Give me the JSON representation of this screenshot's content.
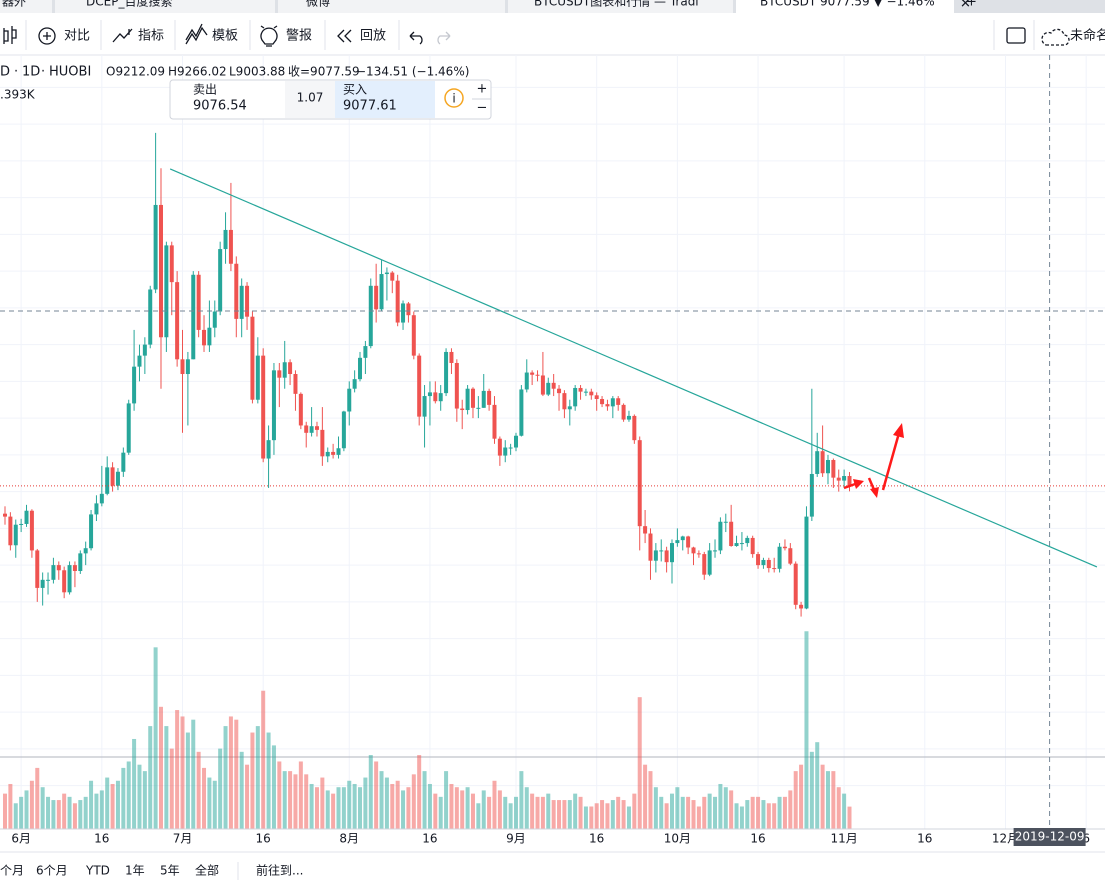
{
  "tabs": [
    "器外",
    "DCEP_百度搜索",
    "微博",
    "BTCUSDT图表和行情 — Tradi",
    "BTCUSDT 9077.59 ▼ −1.46%"
  ],
  "toolbar": {
    "compare": "对比",
    "indicators": "指标",
    "templates": "模板",
    "alerts": "警报",
    "replay": "回放",
    "layout_name": "未命名名"
  },
  "trade_widget": {
    "sell_label": "卖出",
    "sell_price": "9076.54",
    "spread": "1.07",
    "buy_label": "买入",
    "buy_price": "9077.61"
  },
  "range_bar": {
    "items": [
      "个月",
      "6个月",
      "YTD",
      "1年",
      "5年",
      "全部"
    ],
    "goto": "前往到..."
  },
  "chart_data": {
    "type": "candlestick",
    "symbol": "D",
    "interval": "1D",
    "exchange": "HUOBI",
    "legend": {
      "open": "O9212.09",
      "high": "H9266.02",
      "low": "L9003.88",
      "close": "收=9077.59",
      "change": "−134.51 (−1.46%)"
    },
    "volume_label": ".393K",
    "up_color": "#26a69a",
    "down_color": "#ef5350",
    "trend_color": "#26a69a",
    "last_price_color": "#e53935",
    "xlim": [
      -0.93,
      204.5
    ],
    "ylim": [
      4410,
      14940
    ],
    "volume_ylim": [
      0,
      13
    ],
    "xticks": [
      {
        "value": 3,
        "label": "6月"
      },
      {
        "value": 18,
        "label": "16"
      },
      {
        "value": 33,
        "label": "7月"
      },
      {
        "value": 48,
        "label": "16"
      },
      {
        "value": 64,
        "label": "8月"
      },
      {
        "value": 79,
        "label": "16"
      },
      {
        "value": 95,
        "label": "9月"
      },
      {
        "value": 110,
        "label": "16"
      },
      {
        "value": 125,
        "label": "10月"
      },
      {
        "value": 140,
        "label": "16"
      },
      {
        "value": 156,
        "label": "11月"
      },
      {
        "value": 171,
        "label": "16"
      },
      {
        "value": 186,
        "label": "12月"
      },
      {
        "value": 201,
        "label": "6"
      }
    ],
    "ygrid": [
      5000,
      5500,
      6000,
      6500,
      7000,
      7500,
      8000,
      8500,
      9000,
      9500,
      10000,
      10500,
      11000,
      11500,
      12000,
      12500,
      13000,
      13500,
      14000,
      14500
    ],
    "grid": true,
    "trendline": {
      "x": [
        30.7,
        203
      ],
      "y": [
        13390,
        7975
      ]
    },
    "crosshair": {
      "x": 194.2,
      "y": 11458,
      "label": "2019-12-09"
    },
    "ohlc": [
      [
        8700,
        8800,
        8550,
        8660
      ],
      [
        8660,
        8720,
        8200,
        8270
      ],
      [
        8270,
        8620,
        8100,
        8550
      ],
      [
        8550,
        8630,
        8450,
        8560
      ],
      [
        8560,
        8820,
        8520,
        8740
      ],
      [
        8740,
        8760,
        8100,
        8200
      ],
      [
        8200,
        8220,
        7500,
        7690
      ],
      [
        7690,
        7900,
        7450,
        7800
      ],
      [
        7800,
        7900,
        7600,
        7800
      ],
      [
        7800,
        8100,
        7750,
        8000
      ],
      [
        8000,
        8050,
        7800,
        7930
      ],
      [
        7930,
        7980,
        7550,
        7630
      ],
      [
        7630,
        8050,
        7600,
        8000
      ],
      [
        8000,
        8050,
        7700,
        7920
      ],
      [
        7920,
        8200,
        7880,
        8160
      ],
      [
        8160,
        8320,
        8000,
        8230
      ],
      [
        8230,
        8750,
        8200,
        8690
      ],
      [
        8690,
        8950,
        8600,
        8840
      ],
      [
        8840,
        9350,
        8800,
        8970
      ],
      [
        8970,
        9480,
        8950,
        9330
      ],
      [
        9330,
        9400,
        9000,
        9080
      ],
      [
        9080,
        9320,
        9020,
        9270
      ],
      [
        9270,
        9600,
        9200,
        9530
      ],
      [
        9530,
        10250,
        9500,
        10200
      ],
      [
        10200,
        11200,
        10100,
        10700
      ],
      [
        10700,
        11000,
        10500,
        10850
      ],
      [
        10850,
        11100,
        10600,
        11000
      ],
      [
        11000,
        11800,
        10950,
        11750
      ],
      [
        11750,
        13880,
        11700,
        12900
      ],
      [
        12900,
        13400,
        10400,
        11100
      ],
      [
        11100,
        12400,
        10900,
        12350
      ],
      [
        12350,
        12400,
        11400,
        11850
      ],
      [
        11850,
        12000,
        10700,
        10800
      ],
      [
        10800,
        11200,
        9800,
        10600
      ],
      [
        10600,
        10900,
        9900,
        10800
      ],
      [
        10800,
        12000,
        10800,
        11950
      ],
      [
        11950,
        12000,
        11100,
        11200
      ],
      [
        11200,
        11400,
        10900,
        10990
      ],
      [
        10990,
        11600,
        10900,
        11230
      ],
      [
        11230,
        11600,
        11100,
        11450
      ],
      [
        11450,
        12400,
        11400,
        12300
      ],
      [
        12300,
        12800,
        12100,
        12560
      ],
      [
        12560,
        13200,
        12000,
        12100
      ],
      [
        12100,
        12200,
        11100,
        11350
      ],
      [
        11350,
        11900,
        11100,
        11800
      ],
      [
        11800,
        11850,
        11200,
        11380
      ],
      [
        11380,
        11450,
        10200,
        10250
      ],
      [
        10250,
        11100,
        10200,
        10850
      ],
      [
        10850,
        10950,
        9400,
        9450
      ],
      [
        9450,
        9900,
        9050,
        9700
      ],
      [
        9700,
        10750,
        9500,
        10650
      ],
      [
        10650,
        10750,
        10150,
        10550
      ],
      [
        10550,
        11050,
        10400,
        10760
      ],
      [
        10760,
        10800,
        10450,
        10600
      ],
      [
        10600,
        10650,
        10100,
        10330
      ],
      [
        10330,
        10350,
        9850,
        9900
      ],
      [
        9900,
        9950,
        9600,
        9800
      ],
      [
        9800,
        10150,
        9750,
        9890
      ],
      [
        9890,
        9950,
        9750,
        9840
      ],
      [
        9840,
        10150,
        9350,
        9480
      ],
      [
        9480,
        9600,
        9400,
        9540
      ],
      [
        9540,
        9650,
        9450,
        9500
      ],
      [
        9500,
        9750,
        9450,
        9590
      ],
      [
        9590,
        10100,
        9550,
        10090
      ],
      [
        10090,
        10500,
        9900,
        10400
      ],
      [
        10400,
        10650,
        10350,
        10530
      ],
      [
        10530,
        10900,
        10500,
        10820
      ],
      [
        10820,
        11050,
        10600,
        10980
      ],
      [
        10980,
        11900,
        10950,
        11800
      ],
      [
        11800,
        12100,
        11300,
        11480
      ],
      [
        11480,
        12150,
        11450,
        11960
      ],
      [
        11960,
        12050,
        11600,
        11980
      ],
      [
        11980,
        12000,
        11700,
        11870
      ],
      [
        11870,
        11950,
        11250,
        11300
      ],
      [
        11300,
        11600,
        11200,
        11560
      ],
      [
        11560,
        11580,
        11300,
        11400
      ],
      [
        11400,
        11450,
        10800,
        10850
      ],
      [
        10850,
        10880,
        9900,
        10020
      ],
      [
        10020,
        10450,
        9600,
        10300
      ],
      [
        10300,
        10500,
        9900,
        10350
      ],
      [
        10350,
        10500,
        10200,
        10230
      ],
      [
        10230,
        10450,
        10100,
        10340
      ],
      [
        10340,
        10950,
        10300,
        10900
      ],
      [
        10900,
        10950,
        10600,
        10750
      ],
      [
        10750,
        10800,
        9950,
        10130
      ],
      [
        10130,
        10250,
        9850,
        10110
      ],
      [
        10110,
        10450,
        10050,
        10400
      ],
      [
        10400,
        10420,
        10000,
        10140
      ],
      [
        10140,
        10300,
        10000,
        10140
      ],
      [
        10140,
        10600,
        10140,
        10370
      ],
      [
        10370,
        10400,
        10100,
        10180
      ],
      [
        10180,
        10300,
        9650,
        9720
      ],
      [
        9720,
        9750,
        9350,
        9490
      ],
      [
        9490,
        9700,
        9400,
        9600
      ],
      [
        9600,
        9650,
        9500,
        9600
      ],
      [
        9600,
        9800,
        9550,
        9760
      ],
      [
        9760,
        10450,
        9750,
        10390
      ],
      [
        10390,
        10800,
        10350,
        10620
      ],
      [
        10620,
        10650,
        10450,
        10590
      ],
      [
        10590,
        10650,
        10500,
        10580
      ],
      [
        10580,
        10900,
        10300,
        10320
      ],
      [
        10320,
        10550,
        10300,
        10480
      ],
      [
        10480,
        10600,
        10300,
        10400
      ],
      [
        10400,
        10450,
        10100,
        10340
      ],
      [
        10340,
        10380,
        10000,
        10120
      ],
      [
        10120,
        10250,
        9900,
        10160
      ],
      [
        10160,
        10450,
        10100,
        10410
      ],
      [
        10410,
        10450,
        10250,
        10360
      ],
      [
        10360,
        10400,
        10300,
        10360
      ],
      [
        10360,
        10400,
        10250,
        10310
      ],
      [
        10310,
        10350,
        10100,
        10260
      ],
      [
        10260,
        10300,
        10150,
        10190
      ],
      [
        10190,
        10250,
        10100,
        10160
      ],
      [
        10160,
        10300,
        10000,
        10270
      ],
      [
        10270,
        10300,
        10100,
        10180
      ],
      [
        10180,
        10200,
        9950,
        9980
      ],
      [
        9980,
        10100,
        9950,
        10030
      ],
      [
        10030,
        10050,
        9650,
        9700
      ],
      [
        9700,
        9750,
        8200,
        8530
      ],
      [
        8530,
        8750,
        8300,
        8430
      ],
      [
        8430,
        8500,
        7800,
        8060
      ],
      [
        8060,
        8300,
        7900,
        8200
      ],
      [
        8200,
        8350,
        8050,
        8200
      ],
      [
        8200,
        8250,
        7900,
        8040
      ],
      [
        8040,
        8350,
        7750,
        8300
      ],
      [
        8300,
        8500,
        8250,
        8340
      ],
      [
        8340,
        8400,
        8200,
        8390
      ],
      [
        8390,
        8400,
        8150,
        8240
      ],
      [
        8240,
        8250,
        8000,
        8160
      ],
      [
        8160,
        8200,
        8100,
        8150
      ],
      [
        8150,
        8180,
        7800,
        7870
      ],
      [
        7870,
        8300,
        7850,
        8200
      ],
      [
        8200,
        8350,
        8100,
        8200
      ],
      [
        8200,
        8650,
        8150,
        8590
      ],
      [
        8590,
        8700,
        8450,
        8590
      ],
      [
        8590,
        8820,
        8250,
        8260
      ],
      [
        8260,
        8400,
        8250,
        8300
      ],
      [
        8300,
        8450,
        8200,
        8300
      ],
      [
        8300,
        8400,
        8250,
        8370
      ],
      [
        8370,
        8400,
        8100,
        8150
      ],
      [
        8150,
        8180,
        7950,
        8000
      ],
      [
        8000,
        8100,
        7950,
        8070
      ],
      [
        8070,
        8100,
        7900,
        7960
      ],
      [
        7960,
        8100,
        7900,
        7950
      ],
      [
        7950,
        8300,
        7900,
        8250
      ],
      [
        8250,
        8350,
        8200,
        8230
      ],
      [
        8230,
        8300,
        8000,
        8020
      ],
      [
        8020,
        8050,
        7400,
        7460
      ],
      [
        7460,
        7500,
        7300,
        7410
      ],
      [
        7410,
        8800,
        7400,
        8660
      ],
      [
        8660,
        10400,
        8600,
        9240
      ],
      [
        9240,
        9800,
        9200,
        9550
      ],
      [
        9550,
        9900,
        9200,
        9250
      ],
      [
        9250,
        9500,
        9100,
        9430
      ],
      [
        9430,
        9450,
        9050,
        9190
      ],
      [
        9190,
        9300,
        9000,
        9150
      ],
      [
        9150,
        9300,
        9050,
        9212.09
      ],
      [
        9212.09,
        9266.02,
        9003.88,
        9077.59
      ]
    ],
    "volumes": [
      2.2,
      2.8,
      1.6,
      2.0,
      2.4,
      3.0,
      3.8,
      2.6,
      2.0,
      1.8,
      1.8,
      2.2,
      2.0,
      1.6,
      1.8,
      2.0,
      3.0,
      2.2,
      2.4,
      3.2,
      2.8,
      3.0,
      3.8,
      4.2,
      5.6,
      4.0,
      3.6,
      6.4,
      11.3,
      7.6,
      6.4,
      5.0,
      7.4,
      7.0,
      6.0,
      6.8,
      4.8,
      3.8,
      3.2,
      3.0,
      5.0,
      6.4,
      7.0,
      6.8,
      4.8,
      4.0,
      6.0,
      6.4,
      8.6,
      6.0,
      5.2,
      4.2,
      3.6,
      3.6,
      3.4,
      4.2,
      3.4,
      2.8,
      2.6,
      3.2,
      2.4,
      2.2,
      2.6,
      2.6,
      3.0,
      2.8,
      2.6,
      3.2,
      4.6,
      4.2,
      3.6,
      3.2,
      2.8,
      3.0,
      2.4,
      2.6,
      3.4,
      4.6,
      3.6,
      2.8,
      2.2,
      2.0,
      3.6,
      2.8,
      2.6,
      2.4,
      2.6,
      2.2,
      1.6,
      2.4,
      2.0,
      3.0,
      2.4,
      2.0,
      1.6,
      2.0,
      3.6,
      2.6,
      2.2,
      2.0,
      2.0,
      2.2,
      1.8,
      1.8,
      1.8,
      1.8,
      2.2,
      2.0,
      1.4,
      1.4,
      1.6,
      1.8,
      1.6,
      1.8,
      2.0,
      1.8,
      1.4,
      2.2,
      8.2,
      4.0,
      3.6,
      2.6,
      2.0,
      1.6,
      2.2,
      2.6,
      2.0,
      2.0,
      1.8,
      1.4,
      2.0,
      2.2,
      2.0,
      2.8,
      2.6,
      2.4,
      1.6,
      1.4,
      1.8,
      2.0,
      2.0,
      1.8,
      1.6,
      1.6,
      2.0,
      2.0,
      2.4,
      3.6,
      4.0,
      12.3,
      4.8,
      5.4,
      4.0,
      3.6,
      3.6,
      2.6,
      2.2,
      1.393
    ]
  }
}
